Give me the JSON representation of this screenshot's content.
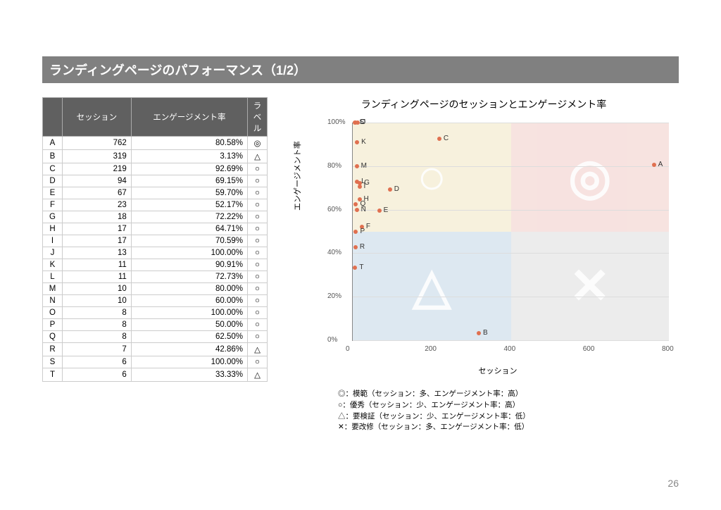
{
  "title": "ランディングページのパフォーマンス（1/2）",
  "page_number": "26",
  "table": {
    "headers": [
      "",
      "セッション",
      "エンゲージメント率",
      "ラベル"
    ],
    "rows": [
      [
        "A",
        "762",
        "80.58%",
        "◎"
      ],
      [
        "B",
        "319",
        "3.13%",
        "△"
      ],
      [
        "C",
        "219",
        "92.69%",
        "○"
      ],
      [
        "D",
        "94",
        "69.15%",
        "○"
      ],
      [
        "E",
        "67",
        "59.70%",
        "○"
      ],
      [
        "F",
        "23",
        "52.17%",
        "○"
      ],
      [
        "G",
        "18",
        "72.22%",
        "○"
      ],
      [
        "H",
        "17",
        "64.71%",
        "○"
      ],
      [
        "I",
        "17",
        "70.59%",
        "○"
      ],
      [
        "J",
        "13",
        "100.00%",
        "○"
      ],
      [
        "K",
        "11",
        "90.91%",
        "○"
      ],
      [
        "L",
        "11",
        "72.73%",
        "○"
      ],
      [
        "M",
        "10",
        "80.00%",
        "○"
      ],
      [
        "N",
        "10",
        "60.00%",
        "○"
      ],
      [
        "O",
        "8",
        "100.00%",
        "○"
      ],
      [
        "P",
        "8",
        "50.00%",
        "○"
      ],
      [
        "Q",
        "8",
        "62.50%",
        "○"
      ],
      [
        "R",
        "7",
        "42.86%",
        "△"
      ],
      [
        "S",
        "6",
        "100.00%",
        "○"
      ],
      [
        "T",
        "6",
        "33.33%",
        "△"
      ]
    ]
  },
  "chart": {
    "title": "ランディングページのセッションとエンゲージメント率",
    "xlabel": "セッション",
    "ylabel": "エンゲージメント率",
    "xlim": [
      0,
      800
    ],
    "ylim": [
      0,
      100
    ],
    "xticks": [
      0,
      200,
      400,
      600,
      800
    ],
    "yticks": [
      0,
      20,
      40,
      60,
      80,
      100
    ],
    "ytick_labels": [
      "0%",
      "20%",
      "40%",
      "60%",
      "80%",
      "100%"
    ],
    "point_color": "#e07050",
    "quadrant_colors": {
      "tl": "#f2e8c8",
      "tr": "#f2d0cc",
      "bl": "#c8dae8",
      "br": "#e0e0e0"
    },
    "quadrant_symbols": {
      "tl": "○",
      "tr": "◎",
      "bl": "△",
      "br": "✕"
    },
    "points": [
      {
        "l": "A",
        "x": 762,
        "y": 80.58
      },
      {
        "l": "B",
        "x": 319,
        "y": 3.13
      },
      {
        "l": "C",
        "x": 219,
        "y": 92.69
      },
      {
        "l": "D",
        "x": 94,
        "y": 69.15
      },
      {
        "l": "E",
        "x": 67,
        "y": 59.7
      },
      {
        "l": "F",
        "x": 23,
        "y": 52.17
      },
      {
        "l": "G",
        "x": 18,
        "y": 72.22
      },
      {
        "l": "H",
        "x": 17,
        "y": 64.71
      },
      {
        "l": "I",
        "x": 17,
        "y": 70.59
      },
      {
        "l": "J",
        "x": 13,
        "y": 100.0
      },
      {
        "l": "K",
        "x": 11,
        "y": 90.91
      },
      {
        "l": "L",
        "x": 11,
        "y": 72.73
      },
      {
        "l": "M",
        "x": 10,
        "y": 80.0
      },
      {
        "l": "N",
        "x": 10,
        "y": 60.0
      },
      {
        "l": "O",
        "x": 8,
        "y": 100.0
      },
      {
        "l": "P",
        "x": 8,
        "y": 50.0
      },
      {
        "l": "Q",
        "x": 8,
        "y": 62.5
      },
      {
        "l": "R",
        "x": 7,
        "y": 42.86
      },
      {
        "l": "S",
        "x": 6,
        "y": 100.0
      },
      {
        "l": "T",
        "x": 6,
        "y": 33.33
      }
    ]
  },
  "legend": [
    "◎：模範（セッション：多、エンゲージメント率：高）",
    "○：優秀（セッション：少、エンゲージメント率：高）",
    "△：要検証（セッション：少、エンゲージメント率：低）",
    "✕：要改修（セッション：多、エンゲージメント率：低）"
  ]
}
